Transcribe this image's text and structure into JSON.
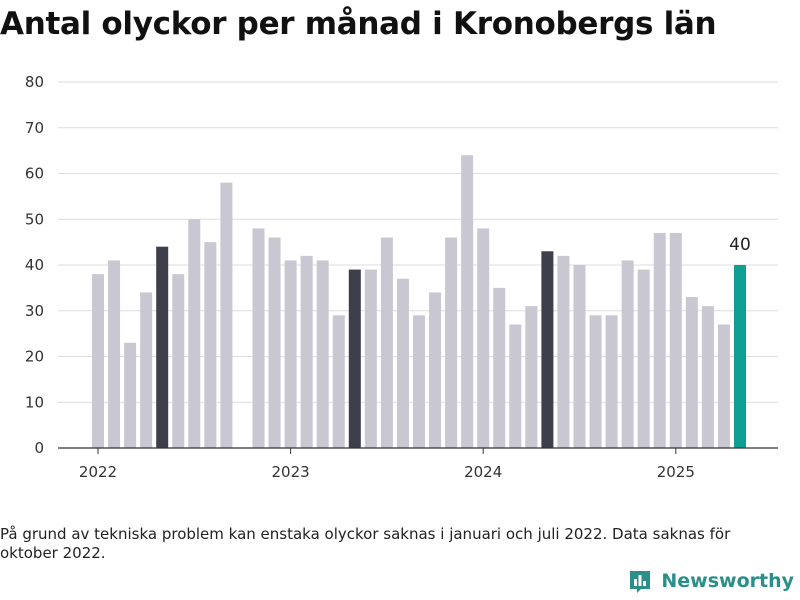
{
  "title": "Antal olyckor per månad i Kronobergs län",
  "note": "På grund av tekniska problem kan enstaka olyckor saknas i januari och juli 2022. Data saknas för oktober 2022.",
  "brand": {
    "name": "Newsworthy",
    "icon": "bar-chart-logo-icon",
    "color": "#2a8f8a"
  },
  "colors": {
    "default": "#c9c7d1",
    "may": "#3d3f4a",
    "latest": "#0f9e93",
    "grid": "#dddddd",
    "axis": "#333333"
  },
  "chart_data": {
    "type": "bar",
    "title": "Antal olyckor per månad i Kronobergs län",
    "xlabel": "",
    "ylabel": "",
    "ylim": [
      0,
      80
    ],
    "yticks": [
      0,
      10,
      20,
      30,
      40,
      50,
      60,
      70,
      80
    ],
    "grid": true,
    "x_tick_labels": [
      {
        "label": "2022",
        "month": "2022-01"
      },
      {
        "label": "2023",
        "month": "2023-01"
      },
      {
        "label": "2024",
        "month": "2024-01"
      },
      {
        "label": "2025",
        "month": "2025-01"
      }
    ],
    "categories": [
      "2022-01",
      "2022-02",
      "2022-03",
      "2022-04",
      "2022-05",
      "2022-06",
      "2022-07",
      "2022-08",
      "2022-09",
      "2022-10",
      "2022-11",
      "2022-12",
      "2023-01",
      "2023-02",
      "2023-03",
      "2023-04",
      "2023-05",
      "2023-06",
      "2023-07",
      "2023-08",
      "2023-09",
      "2023-10",
      "2023-11",
      "2023-12",
      "2024-01",
      "2024-02",
      "2024-03",
      "2024-04",
      "2024-05",
      "2024-06",
      "2024-07",
      "2024-08",
      "2024-09",
      "2024-10",
      "2024-11",
      "2024-12",
      "2025-01",
      "2025-02",
      "2025-03",
      "2025-04",
      "2025-05"
    ],
    "values": [
      38,
      41,
      23,
      34,
      44,
      38,
      50,
      45,
      58,
      null,
      48,
      46,
      41,
      42,
      41,
      29,
      39,
      39,
      46,
      37,
      29,
      34,
      46,
      64,
      48,
      35,
      27,
      31,
      43,
      42,
      40,
      29,
      29,
      41,
      39,
      47,
      47,
      33,
      31,
      27,
      40
    ],
    "highlighted_months": [
      "2022-05",
      "2023-05",
      "2024-05"
    ],
    "latest_month": "2025-05",
    "data_labels": [
      {
        "month": "2025-05",
        "text": "40"
      }
    ]
  }
}
